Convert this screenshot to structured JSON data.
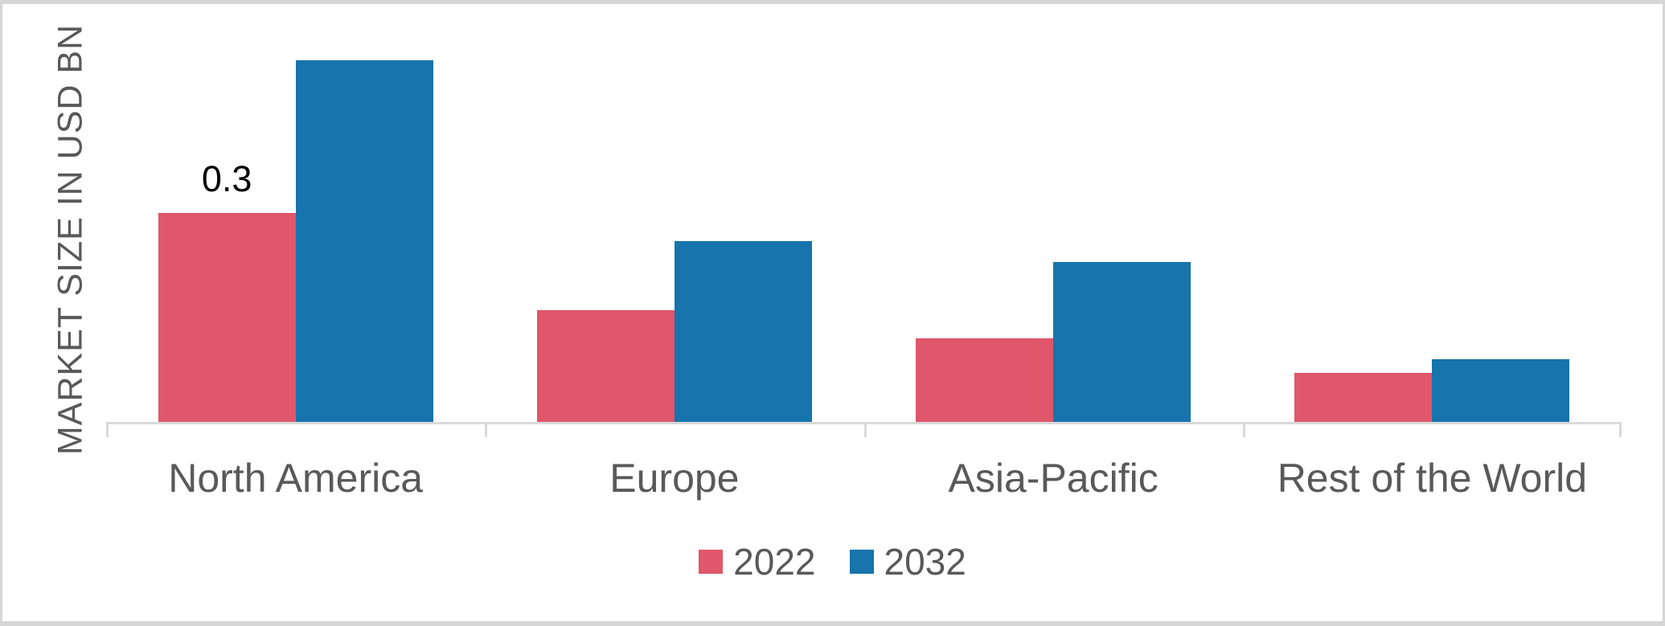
{
  "chart_data": {
    "type": "bar",
    "title": "",
    "xlabel": "",
    "ylabel": "MARKET SIZE IN USD BN",
    "categories": [
      "North America",
      "Europe",
      "Asia-Pacific",
      "Rest of the World"
    ],
    "series": [
      {
        "name": "2022",
        "color": "#e0566a",
        "values": [
          0.3,
          0.16,
          0.12,
          0.07
        ]
      },
      {
        "name": "2032",
        "color": "#1774ac",
        "values": [
          0.52,
          0.26,
          0.23,
          0.09
        ]
      }
    ],
    "bar_labels": [
      {
        "series_index": 0,
        "category_index": 0,
        "text": "0.3"
      }
    ],
    "ylim": [
      0,
      0.55
    ],
    "grid": false,
    "y_axis_ticks_visible": false,
    "legend_position": "bottom-center",
    "colors": {
      "axis": "#d9d9d9",
      "axis_text": "#595959",
      "value_label": "#000000",
      "background": "#ffffff",
      "frame_border": "#d6d6d6"
    }
  }
}
